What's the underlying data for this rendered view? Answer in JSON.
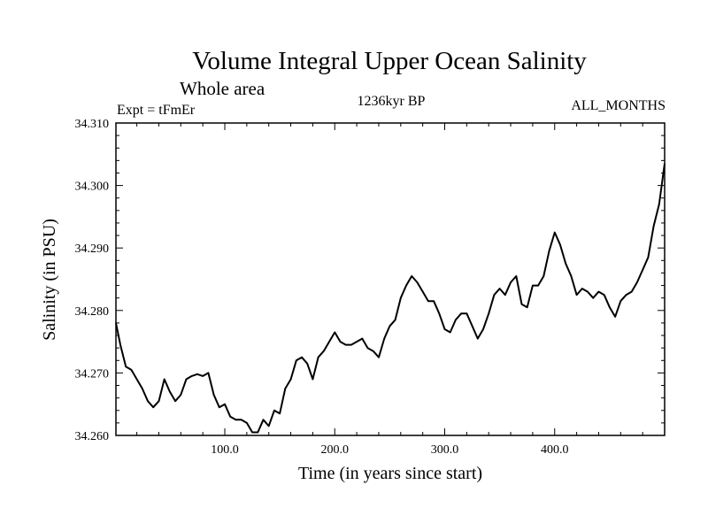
{
  "chart_data": {
    "type": "line",
    "title": "Volume Integral Upper Ocean Salinity",
    "subtitle": "Whole area",
    "experiment_label": "Expt = tFmEr",
    "period_label": "1236kyr BP",
    "months_label": "ALL_MONTHS",
    "xlabel": "Time (in years since start)",
    "ylabel": "Salinity (in PSU)",
    "xlim": [
      1,
      500
    ],
    "ylim": [
      34.26,
      34.31
    ],
    "x_ticks": [
      100,
      200,
      300,
      400
    ],
    "x_tick_labels": [
      "100.0",
      "200.0",
      "300.0",
      "400.0"
    ],
    "y_ticks": [
      34.26,
      34.27,
      34.28,
      34.29,
      34.3,
      34.31
    ],
    "y_tick_labels": [
      "34.260",
      "34.270",
      "34.280",
      "34.290",
      "34.300",
      "34.310"
    ],
    "series": [
      {
        "name": "Salinity",
        "x": [
          1,
          5,
          10,
          15,
          20,
          25,
          30,
          35,
          40,
          45,
          50,
          55,
          60,
          65,
          70,
          75,
          80,
          85,
          90,
          95,
          100,
          105,
          110,
          115,
          120,
          125,
          130,
          135,
          140,
          145,
          150,
          155,
          160,
          165,
          170,
          175,
          180,
          185,
          190,
          195,
          200,
          205,
          210,
          215,
          220,
          225,
          230,
          235,
          240,
          245,
          250,
          255,
          260,
          265,
          270,
          275,
          280,
          285,
          290,
          295,
          300,
          305,
          310,
          315,
          320,
          325,
          330,
          335,
          340,
          345,
          350,
          355,
          360,
          365,
          370,
          375,
          380,
          385,
          390,
          395,
          400,
          405,
          410,
          415,
          420,
          425,
          430,
          435,
          440,
          445,
          450,
          455,
          460,
          465,
          470,
          475,
          480,
          485,
          490,
          495,
          500
        ],
        "values": [
          34.278,
          34.2745,
          34.271,
          34.2705,
          34.269,
          34.2675,
          34.2655,
          34.2645,
          34.2655,
          34.269,
          34.267,
          34.2655,
          34.2665,
          34.269,
          34.2695,
          34.2698,
          34.2695,
          34.27,
          34.2665,
          34.2645,
          34.265,
          34.263,
          34.2625,
          34.2625,
          34.262,
          34.2605,
          34.2605,
          34.2625,
          34.2615,
          34.264,
          34.2635,
          34.2675,
          34.269,
          34.272,
          34.2725,
          34.2715,
          34.269,
          34.2725,
          34.2735,
          34.275,
          34.2765,
          34.275,
          34.2745,
          34.2745,
          34.275,
          34.2755,
          34.274,
          34.2735,
          34.2725,
          34.2755,
          34.2775,
          34.2785,
          34.282,
          34.284,
          34.2855,
          34.2845,
          34.283,
          34.2815,
          34.2815,
          34.2795,
          34.277,
          34.2765,
          34.2785,
          34.2795,
          34.2795,
          34.2775,
          34.2755,
          34.277,
          34.2795,
          34.2825,
          34.2835,
          34.2825,
          34.2845,
          34.2855,
          34.281,
          34.2805,
          34.284,
          34.284,
          34.2855,
          34.2895,
          34.2925,
          34.2905,
          34.2875,
          34.2855,
          34.2825,
          34.2835,
          34.283,
          34.282,
          34.283,
          34.2825,
          34.2805,
          34.279,
          34.2815,
          34.2825,
          34.283,
          34.2845,
          34.2865,
          34.2885,
          34.2935,
          34.297,
          34.3035
        ]
      }
    ]
  }
}
